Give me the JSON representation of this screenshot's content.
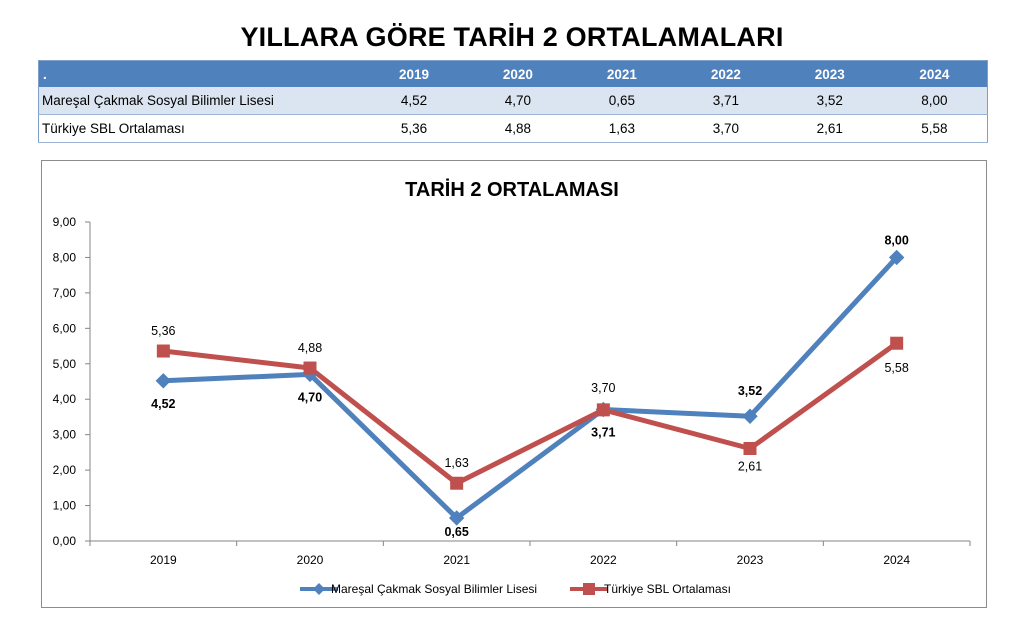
{
  "page_title": "YILLARA GÖRE TARİH 2 ORTALAMALARI",
  "table": {
    "corner": ".",
    "headers": [
      "2019",
      "2020",
      "2021",
      "2022",
      "2023",
      "2024"
    ],
    "rows": [
      {
        "label": "Mareşal Çakmak Sosyal Bilimler Lisesi",
        "values": [
          "4,52",
          "4,70",
          "0,65",
          "3,71",
          "3,52",
          "8,00"
        ]
      },
      {
        "label": "Türkiye SBL Ortalaması",
        "values": [
          "5,36",
          "4,88",
          "1,63",
          "3,70",
          "2,61",
          "5,58"
        ]
      }
    ]
  },
  "colors": {
    "header_bg": "#4f81bd",
    "series1": "#4f81bd",
    "series2": "#c0504d",
    "row_alt": "#dbe5f1"
  },
  "chart_data": {
    "type": "line",
    "title": "TARİH 2 ORTALAMASI",
    "categories": [
      "2019",
      "2020",
      "2021",
      "2022",
      "2023",
      "2024"
    ],
    "series": [
      {
        "name": "Mareşal Çakmak Sosyal Bilimler Lisesi",
        "values": [
          4.52,
          4.7,
          0.65,
          3.71,
          3.52,
          8.0
        ],
        "labels": [
          "4,52",
          "4,70",
          "0,65",
          "3,71",
          "3,52",
          "8,00"
        ],
        "marker": "diamond",
        "color": "#4f81bd"
      },
      {
        "name": "Türkiye SBL Ortalaması",
        "values": [
          5.36,
          4.88,
          1.63,
          3.7,
          2.61,
          5.58
        ],
        "labels": [
          "5,36",
          "4,88",
          "1,63",
          "3,70",
          "2,61",
          "5,58"
        ],
        "marker": "square",
        "color": "#c0504d"
      }
    ],
    "ylim": [
      0,
      9
    ],
    "yticks": [
      "0,00",
      "1,00",
      "2,00",
      "3,00",
      "4,00",
      "5,00",
      "6,00",
      "7,00",
      "8,00",
      "9,00"
    ],
    "grid": false,
    "legend": "bottom"
  }
}
